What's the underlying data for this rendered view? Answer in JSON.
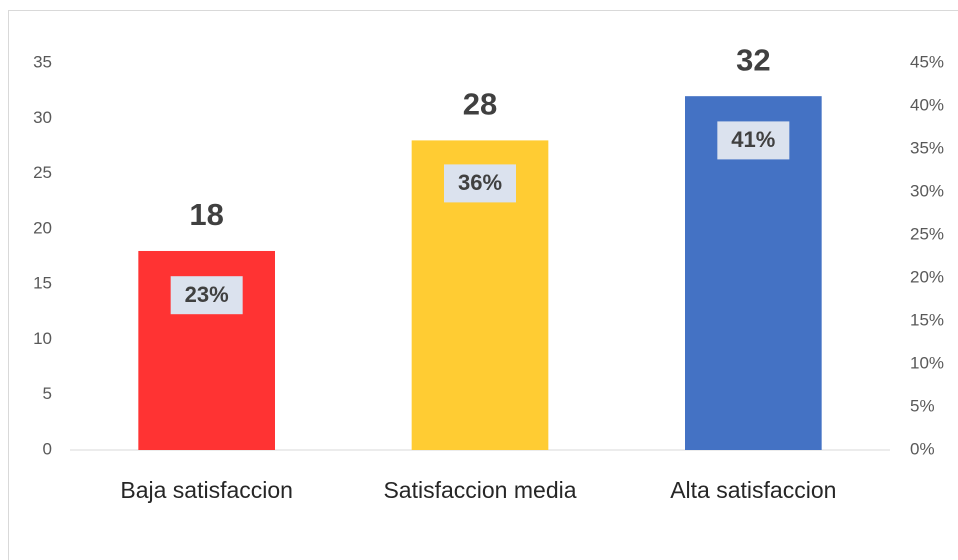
{
  "chart_data": {
    "type": "bar",
    "categories": [
      "Baja satisfaccion",
      "Satisfaccion media",
      "Alta satisfaccion"
    ],
    "series": [
      {
        "values": [
          18,
          28,
          32
        ],
        "colors": [
          "#ff3333",
          "#ffcc33",
          "#4472c4"
        ]
      },
      {
        "values": [
          23,
          36,
          41
        ],
        "value_labels": [
          "23%",
          "36%",
          "41%"
        ],
        "axis": "y2"
      }
    ],
    "ylim": [
      0,
      35
    ],
    "yticks": [
      0,
      5,
      10,
      15,
      20,
      25,
      30,
      35
    ],
    "y2lim": [
      0,
      45
    ],
    "y2ticks": [
      {
        "value": 0,
        "label": "0%"
      },
      {
        "value": 5,
        "label": "5%"
      },
      {
        "value": 10,
        "label": "10%"
      },
      {
        "value": 15,
        "label": "15%"
      },
      {
        "value": 20,
        "label": "20%"
      },
      {
        "value": 25,
        "label": "25%"
      },
      {
        "value": 30,
        "label": "30%"
      },
      {
        "value": 35,
        "label": "35%"
      },
      {
        "value": 40,
        "label": "40%"
      },
      {
        "value": 45,
        "label": "45%"
      }
    ],
    "grid": false
  }
}
